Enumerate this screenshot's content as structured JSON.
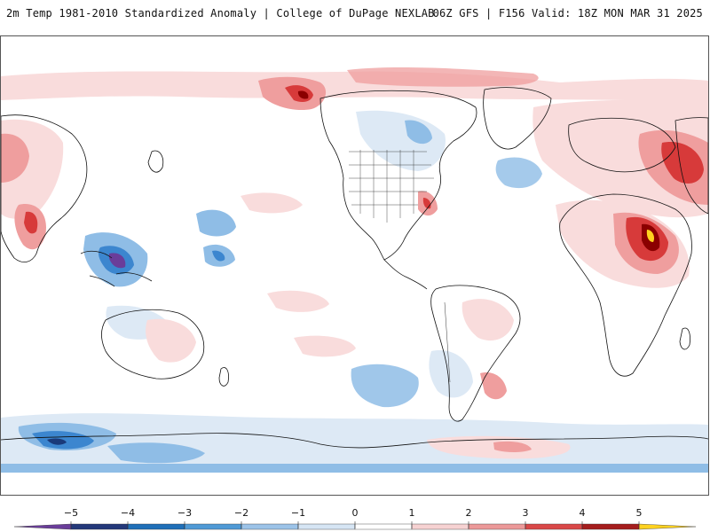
{
  "header": {
    "left_title": "2m Temp 1981-2010 Standardized Anomaly | College of DuPage NEXLAB",
    "right_title": "06Z GFS | F156 Valid: 18Z MON MAR 31 2025"
  },
  "colorbar": {
    "labels": [
      "−5",
      "−4",
      "−3",
      "−2",
      "−1",
      "0",
      "1",
      "2",
      "3",
      "4",
      "5"
    ],
    "colors": [
      "#6a3d9a",
      "#23387a",
      "#1f6fb8",
      "#4f9ad6",
      "#9cc3e8",
      "#d6e5f4",
      "#ffffff",
      "#f6d2d2",
      "#ec9999",
      "#d94848",
      "#a51d1d",
      "#6e0000",
      "#ffd21f"
    ]
  },
  "map": {
    "colors": {
      "ocean": "#ffffff",
      "coast": "#111111",
      "warm_light": "#f9dcdc",
      "warm_mid": "#ef9e9e",
      "warm_strong": "#d73a3a",
      "warm_extreme": "#8b0000",
      "cool_light": "#dde9f5",
      "cool_mid": "#8fbde6",
      "cool_strong": "#3c86cf",
      "cool_extreme": "#1a3a7a",
      "purple": "#6a3d9a",
      "yellow": "#ffd21f"
    }
  }
}
